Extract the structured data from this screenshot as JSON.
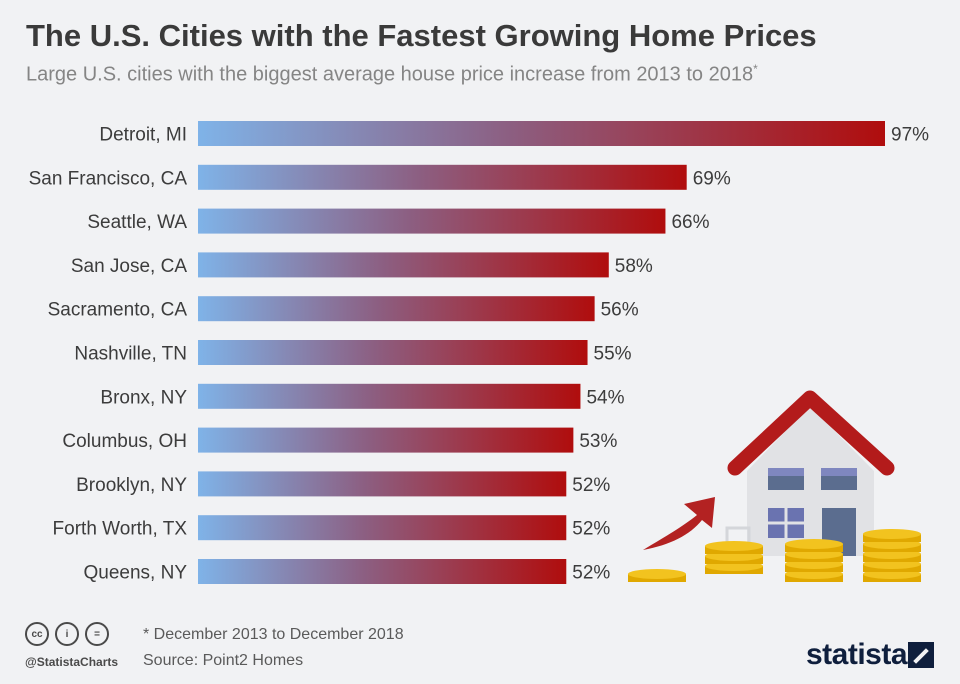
{
  "title": "The U.S. Cities with the Fastest Growing Home Prices",
  "subtitle": "Large U.S. cities with the biggest average house price increase from 2013 to 2018",
  "subtitle_marker": "*",
  "footer": {
    "note": "* December 2013 to December 2018",
    "source": "Source: Point2 Homes",
    "handle": "@StatistaCharts",
    "brand": "statista",
    "cc_icons": [
      "cc-icon",
      "by-icon",
      "nd-icon"
    ]
  },
  "colors": {
    "bar_start": "#7fb3e8",
    "bar_mid": "#8c5f82",
    "bar_end": "#b00d0d",
    "house_roof": "#b31b1b",
    "coin": "#f2c31f",
    "arrow": "#b32222"
  },
  "chart_data": {
    "type": "bar",
    "orientation": "horizontal",
    "categories": [
      "Detroit, MI",
      "San Francisco, CA",
      "Seattle, WA",
      "San Jose, CA",
      "Sacramento, CA",
      "Nashville, TN",
      "Bronx, NY",
      "Columbus, OH",
      "Brooklyn, NY",
      "Forth Worth, TX",
      "Queens, NY"
    ],
    "values": [
      97,
      69,
      66,
      58,
      56,
      55,
      54,
      53,
      52,
      52,
      52
    ],
    "value_labels": [
      "97%",
      "69%",
      "66%",
      "58%",
      "56%",
      "55%",
      "54%",
      "53%",
      "52%",
      "52%",
      "52%"
    ],
    "unit": "%",
    "xlim": [
      0,
      97
    ],
    "grid": false,
    "legend": "none"
  }
}
